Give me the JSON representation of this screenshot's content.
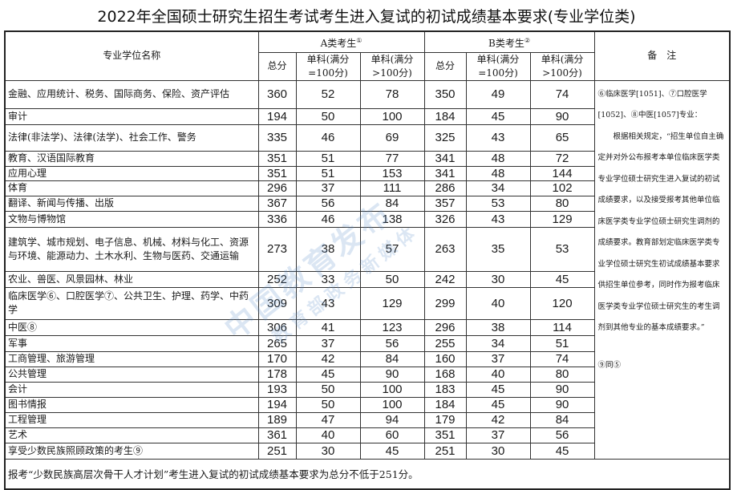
{
  "title": "2022年全国硕士研究生招生考试考生进入复试的初试成绩基本要求(专业学位类)",
  "header": {
    "name_col": "专业学位名称",
    "group_a": "A类考生",
    "group_a_mark": "①",
    "group_b": "B类考生",
    "group_b_mark": "②",
    "total": "总分",
    "single_100": "单科(满分=100分)",
    "single_gt100": "单科(满分>100分)",
    "notes": "备　注"
  },
  "rows": [
    {
      "name": "金融、应用统计、税务、国际商务、保险、资产评估",
      "a_total": "360",
      "a_100": "52",
      "a_gt100": "78",
      "b_total": "350",
      "b_100": "49",
      "b_gt100": "74"
    },
    {
      "name": "审计",
      "a_total": "194",
      "a_100": "50",
      "a_gt100": "100",
      "b_total": "184",
      "b_100": "45",
      "b_gt100": "90"
    },
    {
      "name": "法律(非法学)、法律(法学)、社会工作、警务",
      "a_total": "335",
      "a_100": "46",
      "a_gt100": "69",
      "b_total": "325",
      "b_100": "43",
      "b_gt100": "65"
    },
    {
      "name": "教育、汉语国际教育",
      "a_total": "351",
      "a_100": "51",
      "a_gt100": "77",
      "b_total": "341",
      "b_100": "48",
      "b_gt100": "72"
    },
    {
      "name": "应用心理",
      "a_total": "351",
      "a_100": "51",
      "a_gt100": "153",
      "b_total": "341",
      "b_100": "48",
      "b_gt100": "144"
    },
    {
      "name": "体育",
      "a_total": "296",
      "a_100": "37",
      "a_gt100": "111",
      "b_total": "286",
      "b_100": "34",
      "b_gt100": "102"
    },
    {
      "name": "翻译、新闻与传播、出版",
      "a_total": "367",
      "a_100": "56",
      "a_gt100": "84",
      "b_total": "357",
      "b_100": "53",
      "b_gt100": "80"
    },
    {
      "name": "文物与博物馆",
      "a_total": "336",
      "a_100": "46",
      "a_gt100": "138",
      "b_total": "326",
      "b_100": "43",
      "b_gt100": "129"
    },
    {
      "name": "建筑学、城市规划、电子信息、机械、材料与化工、资源与环境、能源动力、土木水利、生物与医药、交通运输",
      "a_total": "273",
      "a_100": "38",
      "a_gt100": "57",
      "b_total": "263",
      "b_100": "35",
      "b_gt100": "53"
    },
    {
      "name": "农业、兽医、风景园林、林业",
      "a_total": "252",
      "a_100": "33",
      "a_gt100": "50",
      "b_total": "242",
      "b_100": "30",
      "b_gt100": "45"
    },
    {
      "name": "临床医学⑥、口腔医学⑦、公共卫生、护理、药学、中药学",
      "a_total": "309",
      "a_100": "43",
      "a_gt100": "129",
      "b_total": "299",
      "b_100": "40",
      "b_gt100": "120"
    },
    {
      "name": "中医⑧",
      "a_total": "306",
      "a_100": "41",
      "a_gt100": "123",
      "b_total": "296",
      "b_100": "38",
      "b_gt100": "114"
    },
    {
      "name": "军事",
      "a_total": "265",
      "a_100": "37",
      "a_gt100": "56",
      "b_total": "255",
      "b_100": "34",
      "b_gt100": "51"
    },
    {
      "name": "工商管理、旅游管理",
      "a_total": "170",
      "a_100": "42",
      "a_gt100": "84",
      "b_total": "160",
      "b_100": "37",
      "b_gt100": "74"
    },
    {
      "name": "公共管理",
      "a_total": "178",
      "a_100": "45",
      "a_gt100": "90",
      "b_total": "168",
      "b_100": "40",
      "b_gt100": "80"
    },
    {
      "name": "会计",
      "a_total": "193",
      "a_100": "50",
      "a_gt100": "100",
      "b_total": "183",
      "b_100": "45",
      "b_gt100": "90"
    },
    {
      "name": "图书情报",
      "a_total": "194",
      "a_100": "50",
      "a_gt100": "100",
      "b_total": "184",
      "b_100": "45",
      "b_gt100": "90"
    },
    {
      "name": "工程管理",
      "a_total": "189",
      "a_100": "47",
      "a_gt100": "94",
      "b_total": "179",
      "b_100": "42",
      "b_gt100": "84"
    },
    {
      "name": "艺术",
      "a_total": "361",
      "a_100": "40",
      "a_gt100": "60",
      "b_total": "351",
      "b_100": "37",
      "b_gt100": "56"
    },
    {
      "name": "享受少数民族照顾政策的考生⑨",
      "a_total": "251",
      "a_100": "30",
      "a_gt100": "45",
      "b_total": "251",
      "b_100": "30",
      "b_gt100": "45"
    }
  ],
  "notes": {
    "line1": "⑥临床医学[1051]、⑦口腔医学[1052]、⑧中医[1057]专业：",
    "body": "　　根据相关规定，“招生单位自主确定并对外公布报考本单位临床医学类专业学位硕士研究生进入复试的初试成绩要求，以及接受报考其他单位临床医学类专业学位硕士研究生调剂的成绩要求。教育部划定临床医学类专业学位硕士研究生初试成绩基本要求供招生单位参考，同时作为报考临床医学类专业学位硕士研究生的考生调剂到其他专业的基本成绩要求。”",
    "line2": "⑨同⑤"
  },
  "footer": "报考“少数民族高层次骨干人才计划”考生进入复试的初试成绩基本要求为总分不低于251分。",
  "watermark": {
    "line1": "中国教育发布",
    "line2": "教育部政务新媒体"
  }
}
